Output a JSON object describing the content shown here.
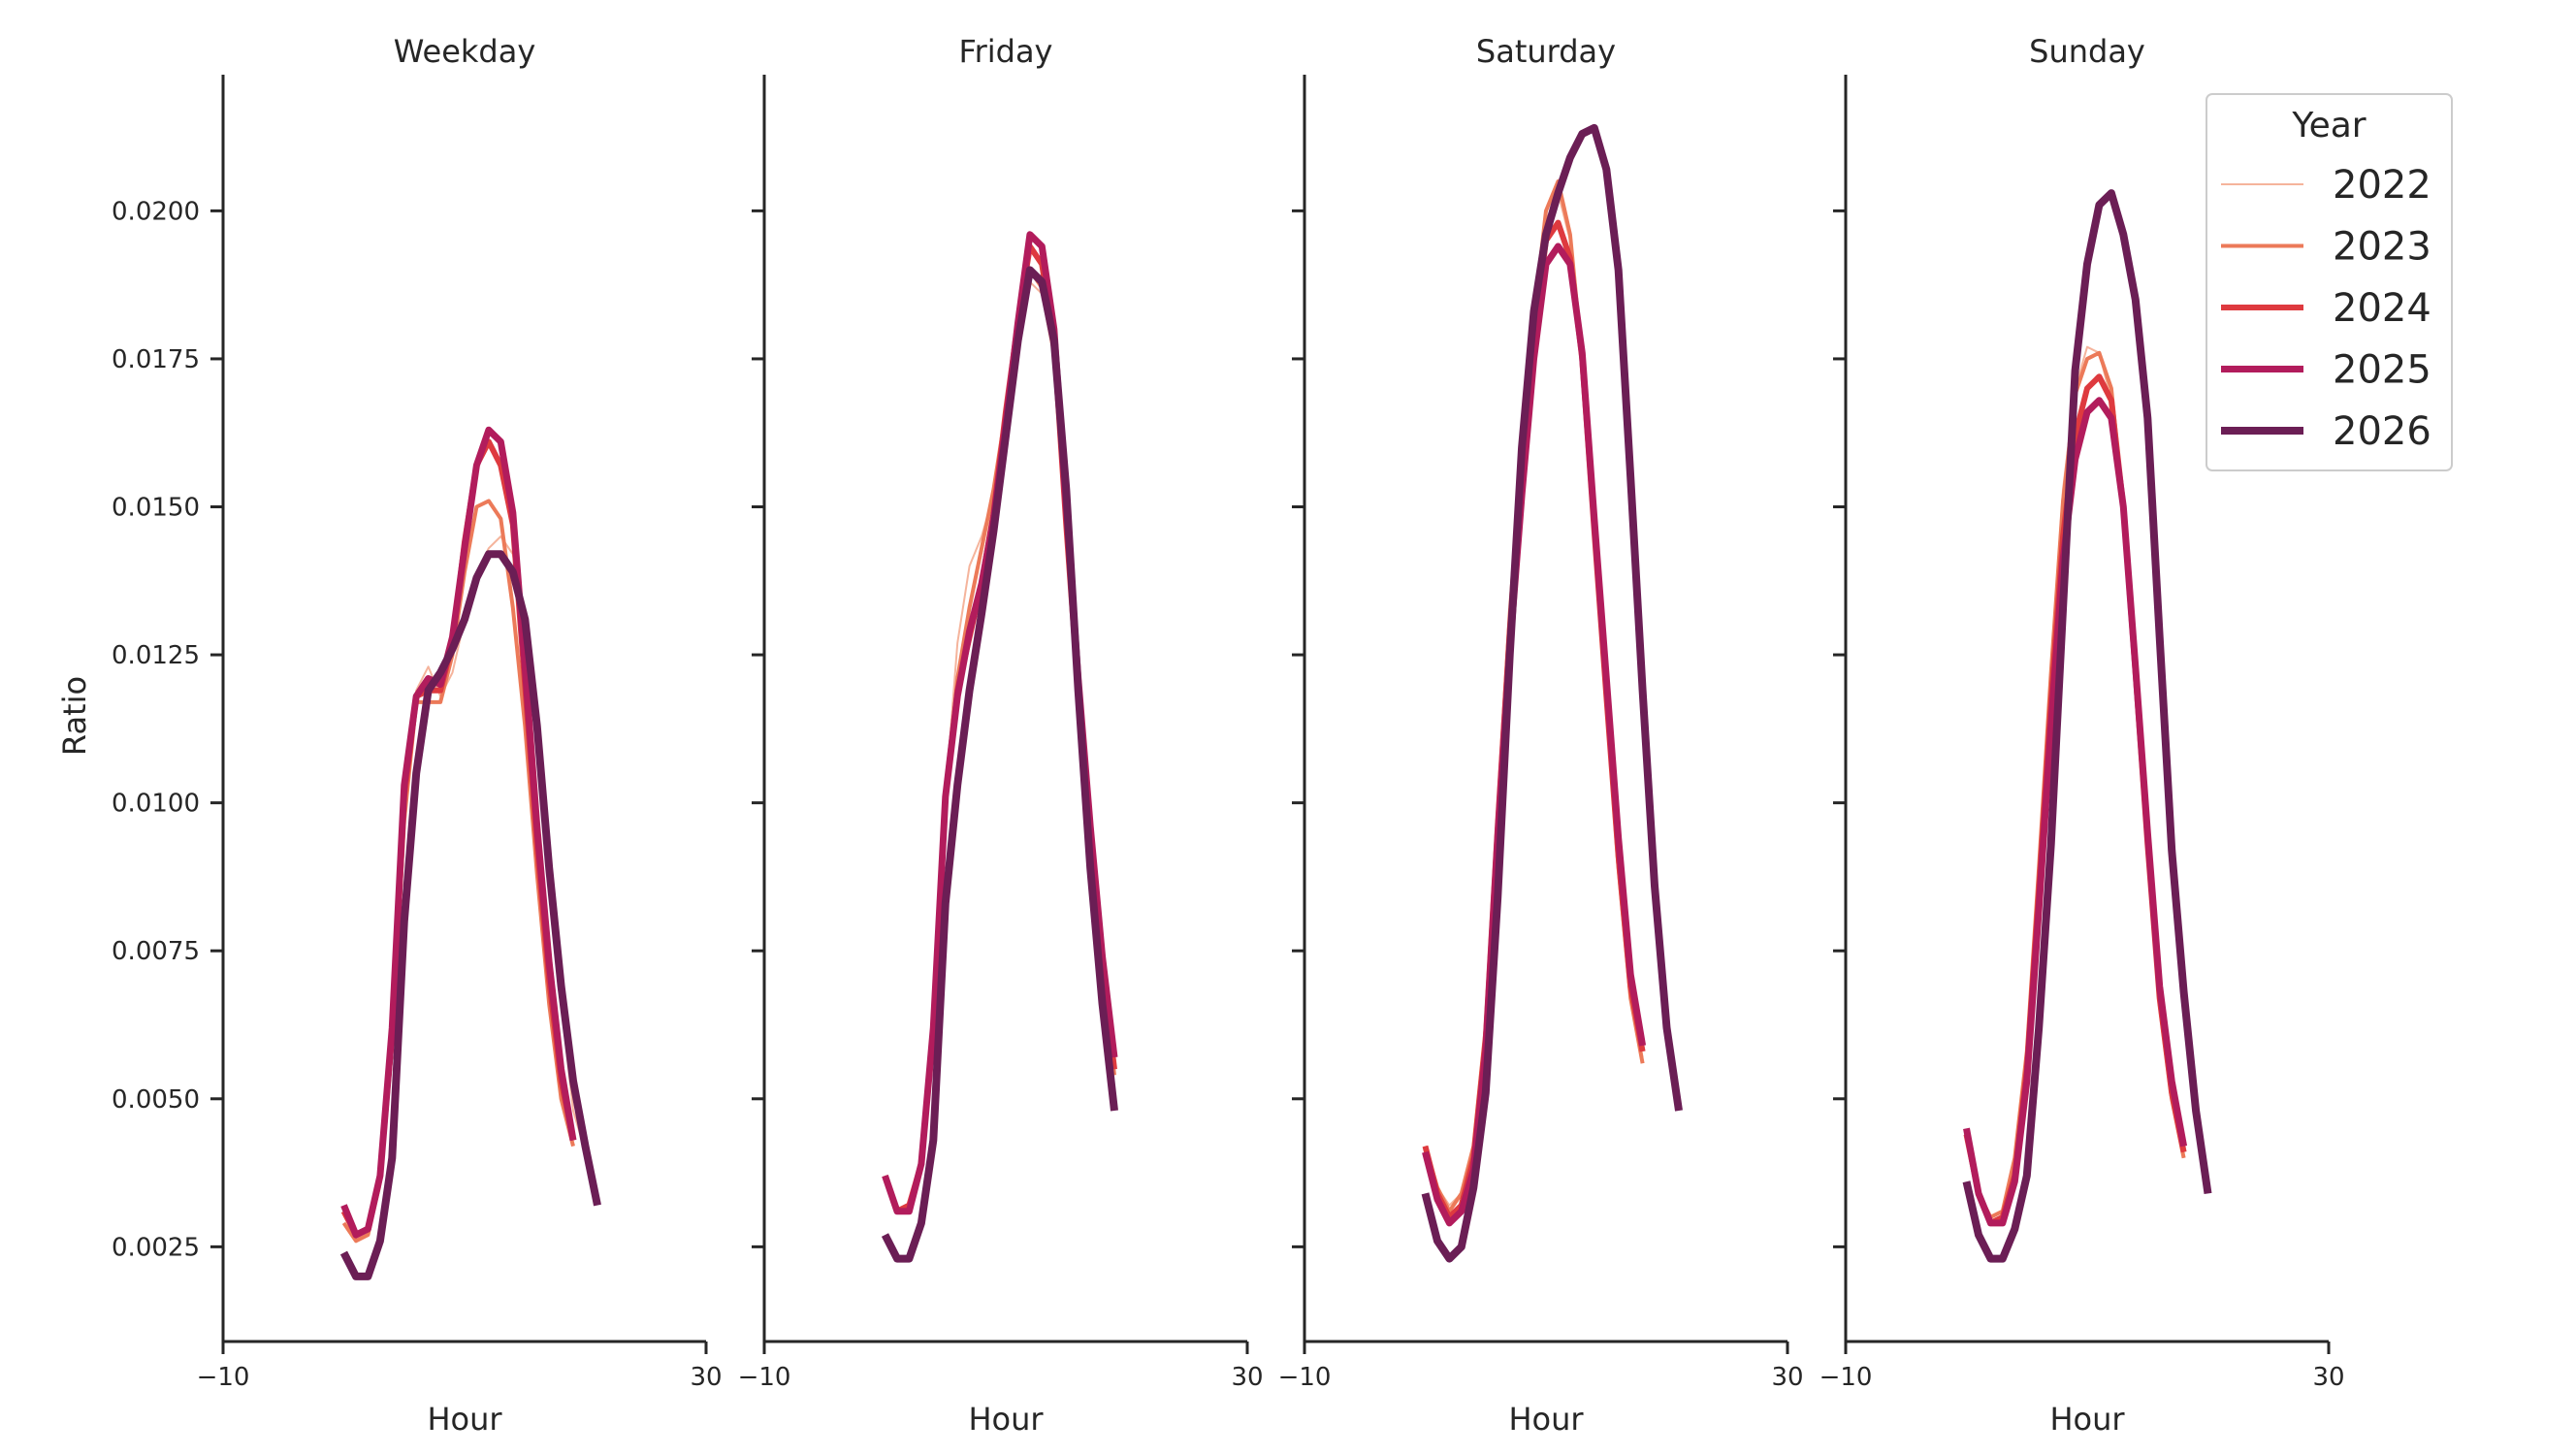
{
  "chart_data": {
    "type": "line",
    "ylabel": "Ratio",
    "xlabel": "Hour",
    "xlim": [
      -10,
      30
    ],
    "ylim": [
      0.0009,
      0.0223
    ],
    "x_ticks": [
      -10,
      30
    ],
    "x_tick_labels": [
      "−10",
      "30"
    ],
    "y_ticks": [
      0.0025,
      0.005,
      0.0075,
      0.01,
      0.0125,
      0.015,
      0.0175,
      0.02
    ],
    "y_tick_labels": [
      "0.0025",
      "0.0050",
      "0.0075",
      "0.0100",
      "0.0125",
      "0.0150",
      "0.0175",
      "0.0200"
    ],
    "grid": false,
    "legend": {
      "title": "Year",
      "placement": "top-right",
      "entries": [
        {
          "name": "2022",
          "color": "#f5b49c",
          "width": 2
        },
        {
          "name": "2023",
          "color": "#ec7a59",
          "width": 4
        },
        {
          "name": "2024",
          "color": "#de3a3f",
          "width": 6
        },
        {
          "name": "2025",
          "color": "#b21c5c",
          "width": 7
        },
        {
          "name": "2026",
          "color": "#6b1e55",
          "width": 8
        }
      ]
    },
    "x": [
      0,
      1,
      2,
      3,
      4,
      5,
      6,
      7,
      8,
      9,
      10,
      11,
      12,
      13,
      14,
      15,
      16,
      17,
      18,
      19,
      20,
      21,
      22,
      23
    ],
    "panels": [
      {
        "title": "Weekday",
        "series": [
          {
            "name": "2022",
            "values": [
              0.0029,
              0.0026,
              0.0027,
              0.0035,
              0.0057,
              0.0095,
              0.0119,
              0.0123,
              0.0118,
              0.0122,
              0.0131,
              0.0139,
              0.0143,
              0.0145,
              0.0142,
              0.0131,
              0.0115,
              0.0091,
              0.0066,
              0.0048,
              0.0041,
              0,
              0,
              0
            ]
          },
          {
            "name": "2023",
            "values": [
              0.0029,
              0.0026,
              0.0027,
              0.0036,
              0.0059,
              0.0097,
              0.0117,
              0.0117,
              0.0117,
              0.0125,
              0.0139,
              0.015,
              0.0151,
              0.0148,
              0.0133,
              0.0113,
              0.0088,
              0.0066,
              0.005,
              0.0042,
              0,
              0,
              0,
              0
            ]
          },
          {
            "name": "2024",
            "values": [
              0.0031,
              0.0027,
              0.0028,
              0.0037,
              0.0061,
              0.0101,
              0.0118,
              0.0119,
              0.0119,
              0.0127,
              0.0144,
              0.0157,
              0.0161,
              0.0157,
              0.0147,
              0.012,
              0.0093,
              0.007,
              0.0053,
              0.0043,
              0,
              0,
              0,
              0
            ]
          },
          {
            "name": "2025",
            "values": [
              0.0032,
              0.0027,
              0.0028,
              0.0037,
              0.0062,
              0.0103,
              0.0118,
              0.0121,
              0.012,
              0.0128,
              0.0143,
              0.0157,
              0.0163,
              0.0161,
              0.0149,
              0.0123,
              0.0096,
              0.0073,
              0.0055,
              0.0043,
              0,
              0,
              0,
              0
            ]
          },
          {
            "name": "2026",
            "values": [
              0.0024,
              0.002,
              0.002,
              0.0026,
              0.004,
              0.008,
              0.0105,
              0.0119,
              0.0122,
              0.0126,
              0.0131,
              0.0138,
              0.0142,
              0.0142,
              0.0139,
              0.0131,
              0.0113,
              0.0089,
              0.0069,
              0.0053,
              0.0042,
              0.0032,
              0,
              0
            ]
          }
        ]
      },
      {
        "title": "Friday",
        "series": [
          {
            "name": "2022",
            "values": [
              0.0037,
              0.0031,
              0.0032,
              0.0039,
              0.0062,
              0.0101,
              0.0127,
              0.014,
              0.0145,
              0.0152,
              0.0163,
              0.0176,
              0.0188,
              0.0186,
              0.0175,
              0.0145,
              0.0119,
              0.0093,
              0.0072,
              0.0056,
              0,
              0,
              0,
              0
            ]
          },
          {
            "name": "2023",
            "values": [
              0.0037,
              0.0031,
              0.0032,
              0.0039,
              0.0061,
              0.0099,
              0.0121,
              0.0133,
              0.0143,
              0.0153,
              0.0166,
              0.0179,
              0.019,
              0.0187,
              0.0176,
              0.0147,
              0.012,
              0.0094,
              0.0072,
              0.0054,
              0,
              0,
              0,
              0
            ]
          },
          {
            "name": "2024",
            "values": [
              0.0037,
              0.0031,
              0.0032,
              0.0039,
              0.0062,
              0.0101,
              0.0119,
              0.0128,
              0.0137,
              0.0149,
              0.0166,
              0.0181,
              0.0194,
              0.0191,
              0.0178,
              0.0147,
              0.0119,
              0.0093,
              0.0072,
              0.0055,
              0,
              0,
              0,
              0
            ]
          },
          {
            "name": "2025",
            "values": [
              0.0037,
              0.0031,
              0.0031,
              0.0039,
              0.0062,
              0.0101,
              0.0118,
              0.0129,
              0.0137,
              0.0148,
              0.0164,
              0.0181,
              0.0196,
              0.0194,
              0.018,
              0.015,
              0.0121,
              0.0096,
              0.0074,
              0.0057,
              0,
              0,
              0,
              0
            ]
          },
          {
            "name": "2026",
            "values": [
              0.0027,
              0.0023,
              0.0023,
              0.0029,
              0.0043,
              0.0083,
              0.0103,
              0.0119,
              0.0132,
              0.0146,
              0.0162,
              0.0178,
              0.019,
              0.0188,
              0.0178,
              0.0153,
              0.0119,
              0.0089,
              0.0066,
              0.0048,
              0,
              0,
              0,
              0
            ]
          }
        ]
      },
      {
        "title": "Saturday",
        "series": [
          {
            "name": "2022",
            "values": [
              0.0042,
              0.0035,
              0.0032,
              0.0034,
              0.0042,
              0.0062,
              0.0098,
              0.0132,
              0.0157,
              0.018,
              0.0195,
              0.0203,
              0.0195,
              0.0175,
              0.0145,
              0.0118,
              0.009,
              0.0068,
              0.0057,
              0,
              0,
              0,
              0,
              0
            ]
          },
          {
            "name": "2023",
            "values": [
              0.0042,
              0.0035,
              0.0031,
              0.0034,
              0.0042,
              0.0062,
              0.0098,
              0.0132,
              0.0159,
              0.0182,
              0.02,
              0.0205,
              0.0196,
              0.0175,
              0.0145,
              0.0117,
              0.0089,
              0.0067,
              0.0056,
              0,
              0,
              0,
              0,
              0
            ]
          },
          {
            "name": "2024",
            "values": [
              0.0042,
              0.0034,
              0.003,
              0.0032,
              0.004,
              0.006,
              0.0096,
              0.0129,
              0.0156,
              0.0179,
              0.0195,
              0.0198,
              0.0192,
              0.0175,
              0.0146,
              0.0118,
              0.0091,
              0.0069,
              0.0058,
              0,
              0,
              0,
              0,
              0
            ]
          },
          {
            "name": "2025",
            "values": [
              0.0041,
              0.0033,
              0.0029,
              0.0031,
              0.0038,
              0.0058,
              0.0094,
              0.0126,
              0.0152,
              0.0175,
              0.0191,
              0.0194,
              0.0191,
              0.0176,
              0.0148,
              0.0121,
              0.0094,
              0.0071,
              0.0059,
              0,
              0,
              0,
              0,
              0
            ]
          },
          {
            "name": "2026",
            "values": [
              0.0034,
              0.0026,
              0.0023,
              0.0025,
              0.0035,
              0.0051,
              0.0084,
              0.0125,
              0.016,
              0.0183,
              0.0196,
              0.0203,
              0.0209,
              0.0213,
              0.0214,
              0.0207,
              0.019,
              0.0155,
              0.0119,
              0.0086,
              0.0062,
              0.0048,
              0,
              0
            ]
          }
        ]
      },
      {
        "title": "Sunday",
        "series": [
          {
            "name": "2022",
            "values": [
              0.0044,
              0.0034,
              0.003,
              0.0031,
              0.0039,
              0.0057,
              0.0088,
              0.0123,
              0.0153,
              0.017,
              0.0177,
              0.0176,
              0.0168,
              0.0148,
              0.012,
              0.0092,
              0.0066,
              0.005,
              0.0041,
              0,
              0,
              0,
              0,
              0
            ]
          },
          {
            "name": "2023",
            "values": [
              0.0044,
              0.0034,
              0.003,
              0.0031,
              0.004,
              0.0058,
              0.0089,
              0.0122,
              0.0151,
              0.0169,
              0.0175,
              0.0176,
              0.017,
              0.015,
              0.0121,
              0.0092,
              0.0066,
              0.005,
              0.004,
              0,
              0,
              0,
              0,
              0
            ]
          },
          {
            "name": "2024",
            "values": [
              0.0044,
              0.0034,
              0.0029,
              0.003,
              0.0037,
              0.0055,
              0.0085,
              0.0117,
              0.0145,
              0.0162,
              0.017,
              0.0172,
              0.0168,
              0.015,
              0.0122,
              0.0093,
              0.0067,
              0.0051,
              0.0041,
              0,
              0,
              0,
              0,
              0
            ]
          },
          {
            "name": "2025",
            "values": [
              0.0045,
              0.0034,
              0.0029,
              0.0029,
              0.0036,
              0.0053,
              0.0082,
              0.0113,
              0.0141,
              0.0158,
              0.0166,
              0.0168,
              0.0165,
              0.015,
              0.0123,
              0.0095,
              0.0069,
              0.0053,
              0.0042,
              0,
              0,
              0,
              0,
              0
            ]
          },
          {
            "name": "2026",
            "values": [
              0.0036,
              0.0027,
              0.0023,
              0.0023,
              0.0028,
              0.0037,
              0.0062,
              0.0093,
              0.0133,
              0.0173,
              0.0191,
              0.0201,
              0.0203,
              0.0196,
              0.0185,
              0.0165,
              0.0128,
              0.0092,
              0.0068,
              0.0048,
              0.0034,
              0,
              0,
              0
            ]
          }
        ]
      }
    ]
  }
}
